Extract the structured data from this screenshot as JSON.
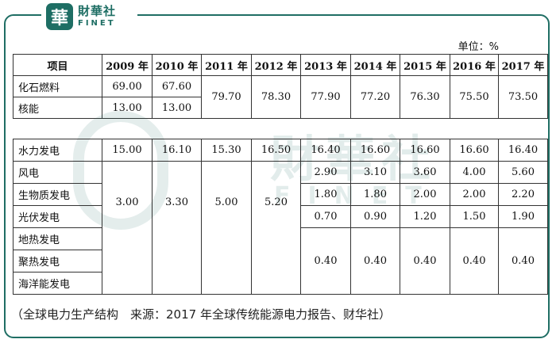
{
  "brand": {
    "logo_char": "華",
    "name_cn": "財華社",
    "name_en": "FINET"
  },
  "watermark": {
    "cn": "財華社",
    "en": "FINET"
  },
  "unit_label": "单位：%",
  "table1": {
    "headers": [
      "项目",
      "2009 年",
      "2010 年",
      "2011 年",
      "2012 年",
      "2013 年",
      "2014 年",
      "2015 年",
      "2016 年",
      "2017 年"
    ],
    "rows": [
      {
        "label": "化石燃料",
        "y2009": "69.00",
        "y2010": "67.60"
      },
      {
        "label": "核能",
        "y2009": "13.00",
        "y2010": "13.00"
      }
    ],
    "merged": {
      "y2011": "79.70",
      "y2012": "78.30",
      "y2013": "77.90",
      "y2014": "77.20",
      "y2015": "76.30",
      "y2016": "75.50",
      "y2017": "73.50"
    }
  },
  "table2": {
    "hydro": {
      "label": "水力发电",
      "values": [
        "15.00",
        "16.10",
        "15.30",
        "16.50",
        "16.40",
        "16.60",
        "16.60",
        "16.60",
        "16.40"
      ]
    },
    "renewables_merged": {
      "y2009": "3.00",
      "y2010": "3.30",
      "y2011": "5.00",
      "y2012": "5.20"
    },
    "wind": {
      "label": "风电",
      "values": [
        "2.90",
        "3.10",
        "3.60",
        "4.00",
        "5.60"
      ]
    },
    "biomass": {
      "label": "生物质发电",
      "values": [
        "1.80",
        "1.80",
        "2.00",
        "2.00",
        "2.20"
      ]
    },
    "solar": {
      "label": "光伏发电",
      "values": [
        "0.70",
        "0.90",
        "1.20",
        "1.50",
        "1.90"
      ]
    },
    "geothermal": {
      "label": "地热发电"
    },
    "csp": {
      "label": "聚热发电"
    },
    "ocean": {
      "label": "海洋能发电"
    },
    "other_merged": [
      "0.40",
      "0.40",
      "0.40",
      "0.40",
      "0.40"
    ]
  },
  "caption": "（全球电力生产结构　来源：2017 年全球传统能源电力报告、财华社）"
}
